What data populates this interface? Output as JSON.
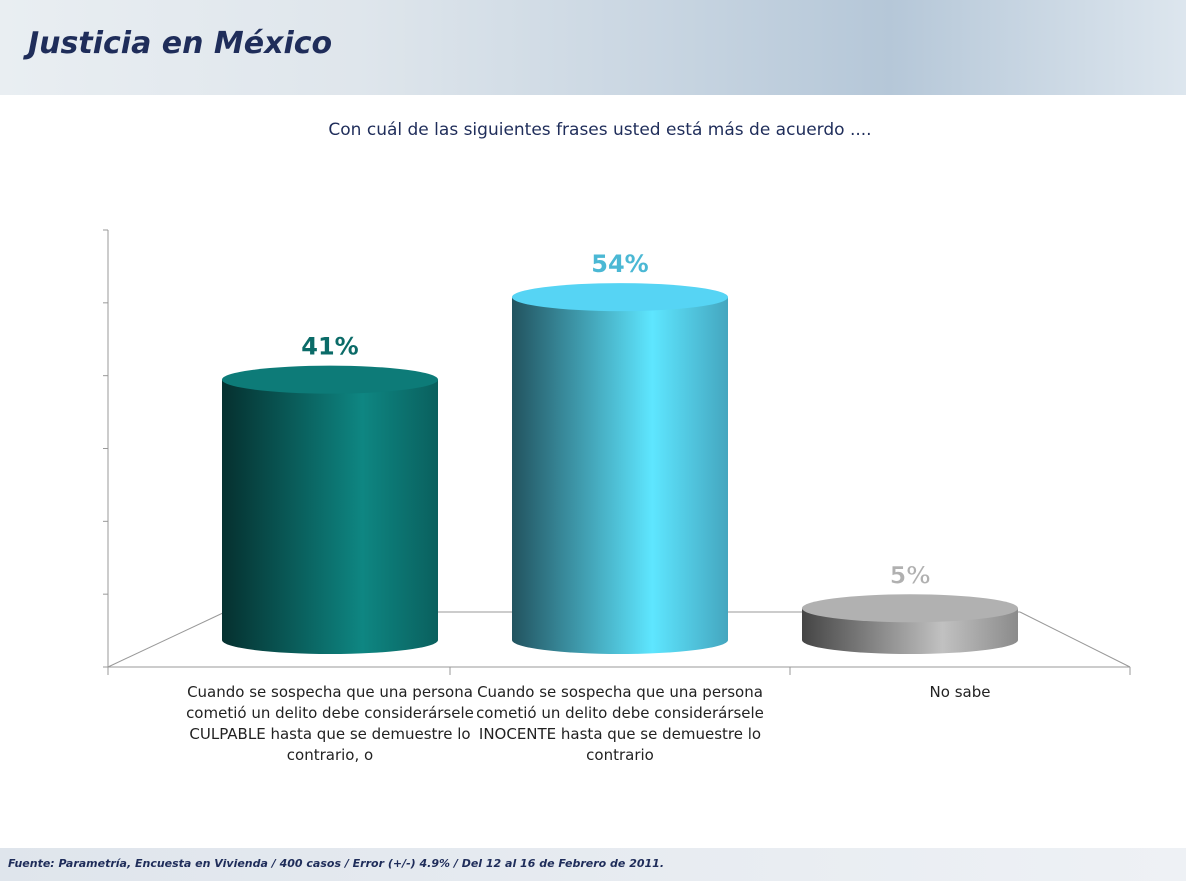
{
  "header": {
    "title": "Justicia en México"
  },
  "chart_data": {
    "type": "bar",
    "title": "Con cuál de las siguientes frases usted está más de acuerdo ....",
    "categories": [
      "Cuando se sospecha que una persona cometió un delito debe considerársele CULPABLE hasta que se demuestre lo contrario, o",
      "Cuando se sospecha que una persona cometió un delito debe considerársele INOCENTE hasta que se demuestre lo contrario",
      "No sabe"
    ],
    "values": [
      41,
      54,
      5
    ],
    "value_labels": [
      "41%",
      "54%",
      "5%"
    ],
    "colors": [
      "#0b6b68",
      "#4bb8d4",
      "#9a9a9a"
    ],
    "ylim": [
      0,
      60
    ]
  },
  "footer": {
    "source": "Fuente: Parametría, Encuesta en Vivienda / 400 casos / Error (+/-) 4.9% / Del 12 al 16 de Febrero de 2011."
  }
}
